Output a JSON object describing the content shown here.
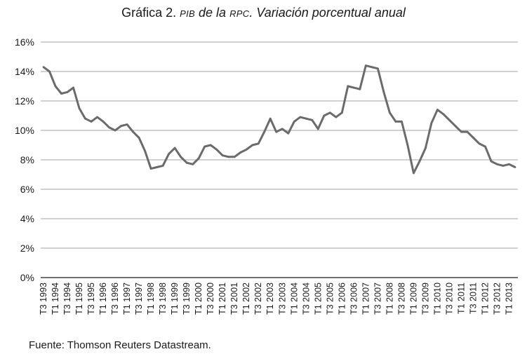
{
  "title": {
    "prefix": "Gráfica 2.",
    "acronym1": "PIB",
    "middle": "de la",
    "acronym2": "RPC",
    "rest": ". Variación porcentual anual"
  },
  "source": "Fuente: Thomson Reuters Datastream.",
  "colors": {
    "line": "#6b6b6b",
    "grid": "#a6a6a6",
    "axis": "#1a1a1a"
  },
  "chart_data": {
    "type": "line",
    "title": "Gráfica 2. PIB de la RPC. Variación porcentual anual",
    "xlabel": "",
    "ylabel": "",
    "ylim": [
      0,
      16
    ],
    "y_ticks": [
      "0%",
      "2%",
      "4%",
      "6%",
      "8%",
      "10%",
      "12%",
      "14%",
      "16%"
    ],
    "grid": "horizontal",
    "x_tick_labels": [
      "T3 1993",
      "T1 1994",
      "T3 1994",
      "T1 1995",
      "T3 1995",
      "T1 1996",
      "T3 1996",
      "T1 1997",
      "T3 1997",
      "T1 1998",
      "T3 1998",
      "T1 1999",
      "T3 1999",
      "T1 2000",
      "T3 2000",
      "T1 2001",
      "T3 2001",
      "T1 2002",
      "T3 2002",
      "T1 2003",
      "T3 2003",
      "T1 2004",
      "T3 2004",
      "T1 2005",
      "T3 2005",
      "T1 2006",
      "T3 2006",
      "T1 2007",
      "T3 2007",
      "T1 2008",
      "T3 2008",
      "T1 2009",
      "T3 2009",
      "T1 2010",
      "T3 2010",
      "T1 2011",
      "T3 2011",
      "T1 2012",
      "T3 2012",
      "T1 2013"
    ],
    "series": [
      {
        "name": "",
        "values": [
          14.3,
          14.0,
          13.0,
          12.5,
          12.6,
          12.9,
          11.5,
          10.8,
          10.6,
          10.9,
          10.6,
          10.2,
          10.0,
          10.3,
          10.4,
          9.9,
          9.5,
          8.6,
          7.4,
          7.5,
          7.6,
          8.4,
          8.8,
          8.2,
          7.8,
          7.7,
          8.1,
          8.9,
          9.0,
          8.7,
          8.3,
          8.2,
          8.2,
          8.5,
          8.7,
          9.0,
          9.1,
          9.9,
          10.8,
          9.9,
          10.1,
          9.8,
          10.6,
          10.9,
          10.8,
          10.7,
          10.1,
          11.0,
          11.2,
          10.9,
          11.2,
          13.0,
          12.9,
          12.8,
          14.4,
          14.3,
          14.2,
          12.6,
          11.2,
          10.6,
          10.6,
          9.0,
          7.1,
          7.9,
          8.8,
          10.5,
          11.4,
          11.1,
          10.7,
          10.3,
          9.9,
          9.9,
          9.5,
          9.1,
          8.9,
          7.9,
          7.7,
          7.6,
          7.7,
          7.5
        ]
      }
    ]
  }
}
